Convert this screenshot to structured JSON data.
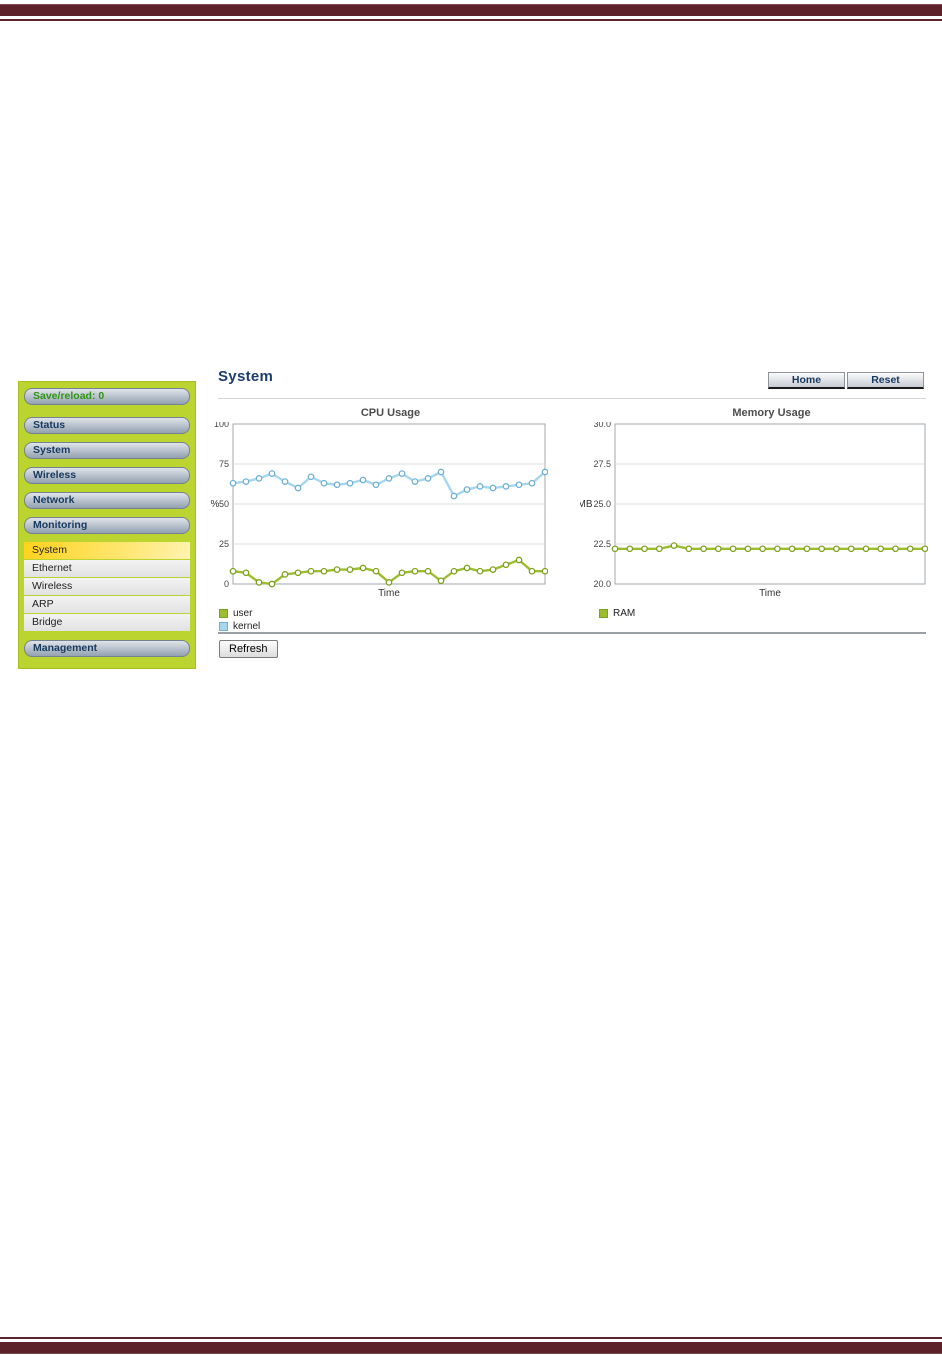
{
  "header": {
    "page_title": "System",
    "home_label": "Home",
    "reset_label": "Reset"
  },
  "sidebar": {
    "save_reload_label": "Save/reload: 0",
    "items": [
      {
        "label": "Status"
      },
      {
        "label": "System"
      },
      {
        "label": "Wireless"
      },
      {
        "label": "Network"
      },
      {
        "label": "Monitoring"
      }
    ],
    "monitoring_subitems": [
      {
        "label": "System",
        "selected": true
      },
      {
        "label": "Ethernet",
        "selected": false
      },
      {
        "label": "Wireless",
        "selected": false
      },
      {
        "label": "ARP",
        "selected": false
      },
      {
        "label": "Bridge",
        "selected": false
      }
    ],
    "management_label": "Management"
  },
  "footer": {
    "refresh_label": "Refresh"
  },
  "colors": {
    "border_maroon": "#5d2129",
    "sidebar_green": "#bcd42f",
    "selected_item_yellow": "#ffd21e",
    "user_green": "#9cbe2e",
    "kernel_blue": "#a6d7ef",
    "nav_text_navy": "#17395f"
  },
  "chart_data": [
    {
      "type": "line",
      "title": "CPU Usage",
      "xlabel": "Time",
      "ylabel": "%",
      "ylim": [
        0,
        100
      ],
      "yticks": [
        0,
        25,
        50,
        75,
        100
      ],
      "ytick_labels": [
        "0",
        "25",
        "50",
        "75",
        "100"
      ],
      "grid": true,
      "legend_position": "bottom-left",
      "series": [
        {
          "name": "user",
          "line_color": "#9cbe2e",
          "marker_color": "#7fa01f",
          "values": [
            8,
            7,
            1,
            0,
            6,
            7,
            8,
            8,
            9,
            9,
            10,
            8,
            1,
            7,
            8,
            8,
            2,
            8,
            10,
            8,
            9,
            12,
            15,
            8,
            8
          ]
        },
        {
          "name": "kernel",
          "line_color": "#a6d7ef",
          "marker_color": "#6fb0d4",
          "values": [
            63,
            64,
            66,
            69,
            64,
            60,
            67,
            63,
            62,
            63,
            65,
            62,
            66,
            69,
            64,
            66,
            70,
            55,
            59,
            61,
            60,
            61,
            62,
            63,
            70
          ]
        }
      ]
    },
    {
      "type": "line",
      "title": "Memory Usage",
      "xlabel": "Time",
      "ylabel": "MB",
      "ylim": [
        20,
        30
      ],
      "yticks": [
        20,
        22.5,
        25,
        27.5,
        30
      ],
      "ytick_labels": [
        "20.0",
        "22.5",
        "25.0",
        "27.5",
        "30.0"
      ],
      "grid": true,
      "legend_position": "bottom-left",
      "series": [
        {
          "name": "RAM",
          "line_color": "#9cbe2e",
          "marker_color": "#7fa01f",
          "values": [
            22.2,
            22.2,
            22.2,
            22.2,
            22.4,
            22.2,
            22.2,
            22.2,
            22.2,
            22.2,
            22.2,
            22.2,
            22.2,
            22.2,
            22.2,
            22.2,
            22.2,
            22.2,
            22.2,
            22.2,
            22.2,
            22.2
          ]
        }
      ]
    }
  ]
}
